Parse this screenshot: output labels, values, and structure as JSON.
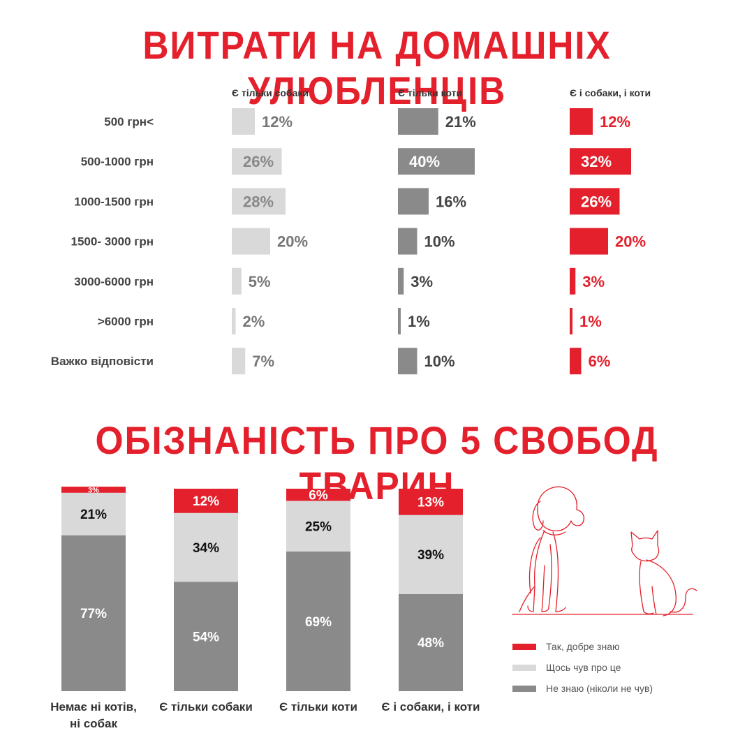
{
  "title_spending": "ВИТРАТИ НА ДОМАШНІХ УЛЮБЛЕНЦІВ",
  "title_awareness": "ОБІЗНАНІСТЬ ПРО 5 СВОБОД ТВАРИН",
  "colors": {
    "light_gray": "#d9d9d9",
    "dark_gray": "#8a8a8a",
    "red": "#e3202b",
    "text_gray": "#777777"
  },
  "chart_data": [
    {
      "type": "bar",
      "orientation": "horizontal",
      "categories": [
        "500 грн<",
        "500-1000 грн",
        "1000-1500 грн",
        "1500- 3000 грн",
        "3000-6000 грн",
        ">6000 грн",
        "Важко відповісти"
      ],
      "series": [
        {
          "name": "Є тільки собаки",
          "values": [
            12,
            26,
            28,
            20,
            5,
            2,
            7
          ],
          "labels": [
            "12%",
            "26%",
            "28%",
            "20%",
            "5%",
            "2%",
            "7%"
          ],
          "color": "#d9d9d9"
        },
        {
          "name": "Є тільки коти",
          "values": [
            21,
            40,
            16,
            10,
            3,
            1,
            10
          ],
          "labels": [
            "21%",
            "40%",
            "16%",
            "10%",
            "3%",
            "1%",
            "10%"
          ],
          "color": "#8a8a8a"
        },
        {
          "name": "Є і собаки, і коти",
          "values": [
            12,
            32,
            26,
            20,
            3,
            1,
            6
          ],
          "labels": [
            "12%",
            "32%",
            "26%",
            "20%",
            "3%",
            "1%",
            "6%"
          ],
          "color": "#e3202b"
        }
      ]
    },
    {
      "type": "bar",
      "stacked": true,
      "categories": [
        "Немає ні котів, ні собак",
        "Є тільки собаки",
        "Є тільки коти",
        "Є і собаки, і коти"
      ],
      "category_lines": [
        [
          "Немає ні котів,",
          "ні собак"
        ],
        [
          "Є тільки собаки"
        ],
        [
          "Є тільки коти"
        ],
        [
          "Є і собаки, і коти"
        ]
      ],
      "series": [
        {
          "name": "Не знаю (ніколи не чув)",
          "values": [
            77,
            54,
            69,
            48
          ],
          "labels": [
            "77%",
            "54%",
            "69%",
            "48%"
          ],
          "color": "#8a8a8a"
        },
        {
          "name": "Щось чув про це",
          "values": [
            21,
            34,
            25,
            39
          ],
          "labels": [
            "21%",
            "34%",
            "25%",
            "39%"
          ],
          "color": "#d9d9d9"
        },
        {
          "name": "Так, добре знаю",
          "values": [
            3,
            12,
            6,
            13
          ],
          "labels": [
            "3%",
            "12%",
            "6%",
            "13%"
          ],
          "color": "#e3202b"
        }
      ],
      "legend": [
        {
          "label": "Так, добре знаю",
          "color": "#e3202b"
        },
        {
          "label": "Щось чув про це",
          "color": "#d9d9d9"
        },
        {
          "label": "Не знаю (ніколи не чув)",
          "color": "#8a8a8a"
        }
      ],
      "legend_position": "right"
    }
  ]
}
